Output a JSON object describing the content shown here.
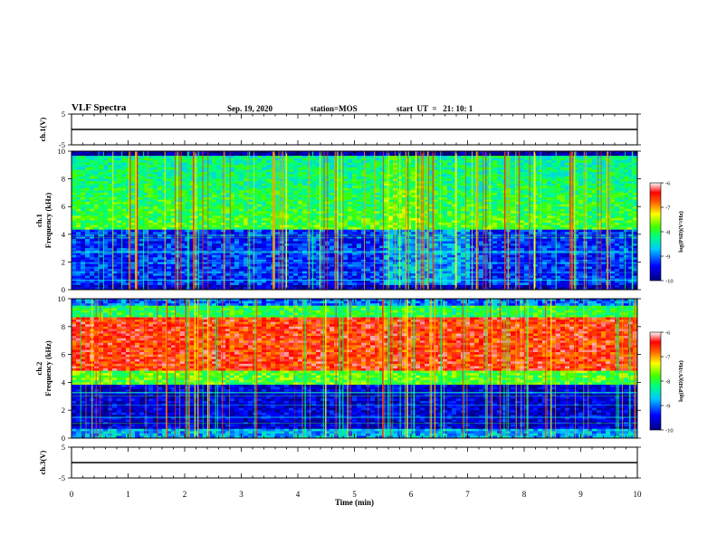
{
  "header": {
    "title": "VLF Spectra",
    "date": "Sep. 19, 2020",
    "station": "station=MOS",
    "start": "start  UT  =   21: 10: 1"
  },
  "chart_data": [
    {
      "type": "line",
      "name": "ch1-waveform",
      "ylabel": "ch.1(V)",
      "ylim": [
        -5,
        5
      ],
      "yticks": [
        5,
        -5
      ],
      "x": [
        0,
        10
      ],
      "values": [
        0,
        0
      ]
    },
    {
      "type": "heatmap",
      "name": "ch1-spectrogram",
      "ylabel_lines": [
        "ch.1",
        "Frequency (kHz)"
      ],
      "ylim": [
        0,
        10
      ],
      "yticks": [
        0,
        2,
        4,
        6,
        8,
        10
      ],
      "xlim": [
        0,
        10
      ],
      "colorbar": {
        "label": "log(PSD)(V²/Hz)",
        "range": [
          -10,
          -6
        ],
        "ticks": [
          -6,
          -7,
          -8,
          -9,
          -10
        ]
      }
    },
    {
      "type": "heatmap",
      "name": "ch2-spectrogram",
      "ylabel_lines": [
        "ch.2",
        "Frequency (kHz)"
      ],
      "ylim": [
        0,
        10
      ],
      "yticks": [
        0,
        2,
        4,
        6,
        8,
        10
      ],
      "xlim": [
        0,
        10
      ],
      "colorbar": {
        "label": "log(PSD)(V²/Hz)",
        "range": [
          -10,
          -6
        ],
        "ticks": [
          -6,
          -7,
          -8,
          -9,
          -10
        ]
      }
    },
    {
      "type": "line",
      "name": "ch3-waveform",
      "ylabel": "ch.3(V)",
      "ylim": [
        -5,
        5
      ],
      "yticks": [
        5,
        -5
      ],
      "x": [
        0,
        10
      ],
      "values": [
        0,
        0
      ],
      "xlabel": "Time (min)",
      "xlim": [
        0,
        10
      ],
      "xticks": [
        0,
        1,
        2,
        3,
        4,
        5,
        6,
        7,
        8,
        9,
        10
      ]
    }
  ]
}
